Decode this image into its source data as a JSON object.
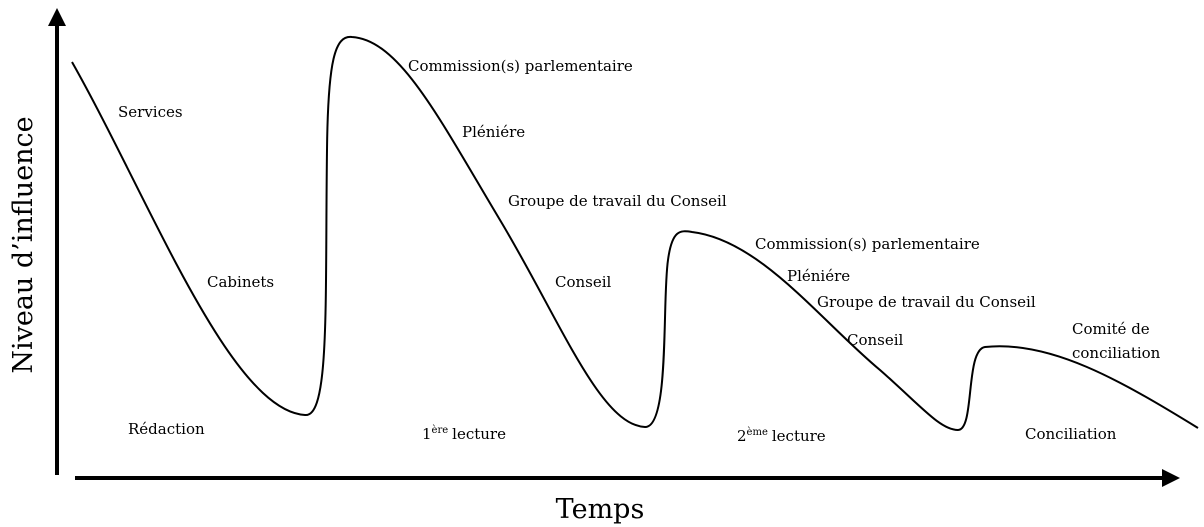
{
  "axes": {
    "y_label": "Niveau d’influence",
    "x_label": "Temps"
  },
  "stages": [
    {
      "label": "Rédaction"
    },
    {
      "prefix": "1",
      "sup": "ère",
      "label": "lecture"
    },
    {
      "prefix": "2",
      "sup": "ème",
      "label": "lecture"
    },
    {
      "label": "Conciliation"
    }
  ],
  "annotations": [
    "Services",
    "Cabinets",
    "Commission(s) parlementaire",
    "Pléniére",
    "Groupe de travail du Conseil",
    "Conseil",
    "Commission(s) parlementaire",
    "Pléniére",
    "Groupe de travail du Conseil",
    "Conseil",
    [
      "Comité de",
      "conciliation"
    ]
  ]
}
